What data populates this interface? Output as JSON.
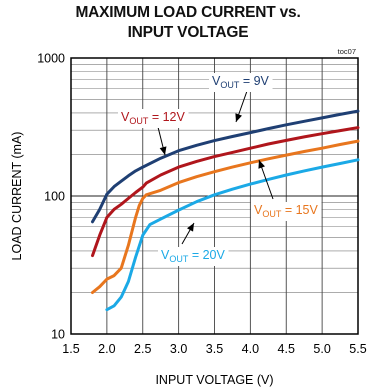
{
  "chart_data": {
    "type": "line",
    "title_line1": "MAXIMUM LOAD CURRENT vs.",
    "title_line2": "INPUT VOLTAGE",
    "tag": "toc07",
    "xlabel": "INPUT VOLTAGE (V)",
    "ylabel": "LOAD CURRENT (mA)",
    "xlim": [
      1.5,
      5.5
    ],
    "ylim": [
      10,
      1000
    ],
    "yscale": "log",
    "x_ticks": [
      "1.5",
      "2.0",
      "2.5",
      "3.0",
      "3.5",
      "4.0",
      "4.5",
      "5.0",
      "5.5"
    ],
    "y_ticks": [
      "10",
      "100",
      "1000"
    ],
    "grid": true,
    "series": [
      {
        "name": "VOUT = 9V",
        "label_main": "V",
        "label_sub": "OUT",
        "label_rest": " = 9V",
        "color": "#1f3f73",
        "x": [
          1.8,
          1.9,
          2.0,
          2.1,
          2.2,
          2.3,
          2.4,
          2.5,
          2.75,
          3.0,
          3.25,
          3.5,
          3.75,
          4.0,
          4.25,
          4.5,
          4.75,
          5.0,
          5.25,
          5.5
        ],
        "y": [
          65,
          80,
          103,
          117,
          128,
          140,
          152,
          162,
          188,
          213,
          233,
          252,
          270,
          288,
          308,
          328,
          348,
          368,
          390,
          412
        ]
      },
      {
        "name": "VOUT = 12V",
        "label_main": "V",
        "label_sub": "OUT",
        "label_rest": " = 12V",
        "color": "#b0161c",
        "x": [
          1.8,
          1.9,
          2.0,
          2.1,
          2.2,
          2.3,
          2.4,
          2.5,
          2.55,
          2.75,
          3.0,
          3.25,
          3.5,
          3.75,
          4.0,
          4.25,
          4.5,
          4.75,
          5.0,
          5.25,
          5.5
        ],
        "y": [
          37,
          52,
          70,
          80,
          87,
          96,
          106,
          116,
          124,
          142,
          162,
          178,
          193,
          207,
          222,
          238,
          253,
          268,
          283,
          298,
          313
        ]
      },
      {
        "name": "VOUT = 15V",
        "label_main": "V",
        "label_sub": "OUT",
        "label_rest": " = 15V",
        "color": "#e8761e",
        "x": [
          1.8,
          1.9,
          2.0,
          2.1,
          2.2,
          2.3,
          2.4,
          2.45,
          2.5,
          2.55,
          2.75,
          3.0,
          3.25,
          3.5,
          3.75,
          4.0,
          4.25,
          4.5,
          4.75,
          5.0,
          5.25,
          5.5
        ],
        "y": [
          20,
          22,
          25,
          26.5,
          30,
          44,
          70,
          85,
          96,
          102,
          110,
          125,
          138,
          150,
          162,
          174,
          186,
          198,
          210,
          222,
          236,
          250
        ]
      },
      {
        "name": "VOUT = 20V",
        "label_main": "V",
        "label_sub": "OUT",
        "label_rest": " = 20V",
        "color": "#1ba9e6",
        "x": [
          2.0,
          2.1,
          2.2,
          2.3,
          2.4,
          2.5,
          2.6,
          2.75,
          3.0,
          3.25,
          3.5,
          3.75,
          4.0,
          4.25,
          4.5,
          4.75,
          5.0,
          5.25,
          5.5
        ],
        "y": [
          15,
          16,
          18.5,
          24,
          36,
          52,
          62,
          68,
          79,
          91,
          102,
          112,
          122,
          132,
          142,
          152,
          162,
          172,
          183
        ]
      }
    ]
  }
}
